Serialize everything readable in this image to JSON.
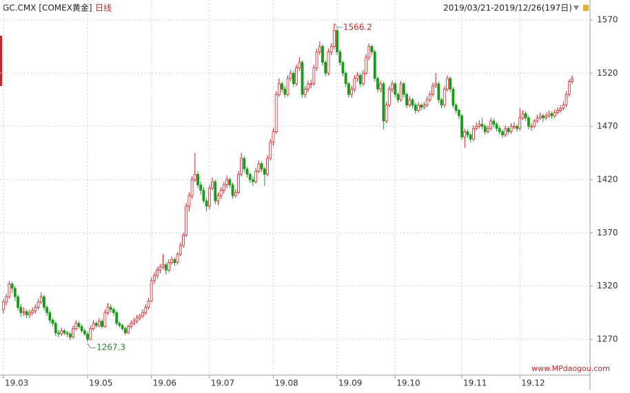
{
  "chart_data": {
    "type": "candlestick",
    "title": "GC.CMX [COMEX黄金]",
    "subtitle": "日线",
    "range_label": "2019/03/21-2019/12/26(197日)",
    "watermark": "www.MPdaogou.com",
    "up_color": "#d42020",
    "down_color": "#1a9a1a",
    "grid": true,
    "ylim": [
      1236.4,
      1588.7
    ],
    "yticks": [
      1270,
      1320,
      1370,
      1420,
      1470,
      1520,
      1570
    ],
    "annotations": [
      {
        "value": 1566.2,
        "color": "#c0282d"
      },
      {
        "value": 1267.3,
        "color": "#2a7d2a"
      }
    ],
    "categories": [
      "19.03",
      null,
      null,
      null,
      null,
      null,
      null,
      null,
      null,
      null,
      null,
      null,
      null,
      null,
      null,
      null,
      null,
      null,
      null,
      null,
      null,
      null,
      null,
      null,
      null,
      null,
      null,
      null,
      null,
      "19.05",
      null,
      null,
      null,
      null,
      null,
      null,
      null,
      null,
      null,
      null,
      null,
      null,
      null,
      null,
      null,
      null,
      null,
      null,
      null,
      null,
      null,
      "19.06",
      null,
      null,
      null,
      null,
      null,
      null,
      null,
      null,
      null,
      null,
      null,
      null,
      null,
      null,
      null,
      null,
      null,
      null,
      null,
      "19.07",
      null,
      null,
      null,
      null,
      null,
      null,
      null,
      null,
      null,
      null,
      null,
      null,
      null,
      null,
      null,
      null,
      null,
      null,
      null,
      null,
      null,
      "19.08",
      null,
      null,
      null,
      null,
      null,
      null,
      null,
      null,
      null,
      null,
      null,
      null,
      null,
      null,
      null,
      null,
      null,
      null,
      null,
      null,
      null,
      "19.09",
      null,
      null,
      null,
      null,
      null,
      null,
      null,
      null,
      null,
      null,
      null,
      null,
      null,
      null,
      null,
      null,
      null,
      null,
      null,
      "19.10",
      null,
      null,
      null,
      null,
      null,
      null,
      null,
      null,
      null,
      null,
      null,
      null,
      null,
      null,
      null,
      null,
      null,
      null,
      null,
      null,
      null,
      null,
      "19.11",
      null,
      null,
      null,
      null,
      null,
      null,
      null,
      null,
      null,
      null,
      null,
      null,
      null,
      null,
      null,
      null,
      null,
      null,
      null,
      "19.12",
      null,
      null,
      null,
      null,
      null,
      null,
      null,
      null,
      null,
      null,
      null,
      null,
      null,
      null,
      null,
      null,
      null,
      null
    ],
    "ohlc": [
      [
        1298,
        1308,
        1294,
        1305
      ],
      [
        1305,
        1313,
        1302,
        1310
      ],
      [
        1310,
        1325,
        1308,
        1322
      ],
      [
        1322,
        1324,
        1314,
        1318
      ],
      [
        1318,
        1320,
        1306,
        1310
      ],
      [
        1310,
        1312,
        1297,
        1300
      ],
      [
        1300,
        1303,
        1291,
        1295
      ],
      [
        1295,
        1300,
        1292,
        1296
      ],
      [
        1296,
        1298,
        1290,
        1293
      ],
      [
        1293,
        1298,
        1290,
        1295
      ],
      [
        1295,
        1300,
        1293,
        1297
      ],
      [
        1297,
        1303,
        1294,
        1300
      ],
      [
        1300,
        1308,
        1298,
        1305
      ],
      [
        1305,
        1314,
        1303,
        1310
      ],
      [
        1310,
        1312,
        1297,
        1300
      ],
      [
        1300,
        1302,
        1292,
        1295
      ],
      [
        1295,
        1297,
        1285,
        1288
      ],
      [
        1288,
        1290,
        1282,
        1285
      ],
      [
        1285,
        1287,
        1273,
        1276
      ],
      [
        1276,
        1279,
        1272,
        1275
      ],
      [
        1275,
        1281,
        1273,
        1278
      ],
      [
        1278,
        1280,
        1274,
        1276
      ],
      [
        1276,
        1278,
        1272,
        1275
      ],
      [
        1275,
        1277,
        1269,
        1272
      ],
      [
        1272,
        1283,
        1271,
        1280
      ],
      [
        1280,
        1288,
        1278,
        1285
      ],
      [
        1285,
        1287,
        1280,
        1282
      ],
      [
        1282,
        1284,
        1276,
        1278
      ],
      [
        1278,
        1280,
        1273,
        1275
      ],
      [
        1275,
        1277,
        1267.3,
        1270
      ],
      [
        1270,
        1283,
        1269,
        1280
      ],
      [
        1280,
        1288,
        1278,
        1285
      ],
      [
        1285,
        1287,
        1281,
        1283
      ],
      [
        1283,
        1290,
        1281,
        1287
      ],
      [
        1287,
        1289,
        1280,
        1282
      ],
      [
        1282,
        1298,
        1281,
        1295
      ],
      [
        1295,
        1304,
        1293,
        1300
      ],
      [
        1300,
        1303,
        1295,
        1298
      ],
      [
        1298,
        1300,
        1292,
        1295
      ],
      [
        1295,
        1297,
        1283,
        1285
      ],
      [
        1285,
        1287,
        1281,
        1283
      ],
      [
        1283,
        1285,
        1278,
        1280
      ],
      [
        1280,
        1282,
        1274,
        1276
      ],
      [
        1276,
        1284,
        1275,
        1282
      ],
      [
        1282,
        1288,
        1280,
        1285
      ],
      [
        1285,
        1290,
        1283,
        1287
      ],
      [
        1287,
        1293,
        1285,
        1290
      ],
      [
        1290,
        1294,
        1288,
        1292
      ],
      [
        1292,
        1298,
        1290,
        1295
      ],
      [
        1295,
        1303,
        1293,
        1300
      ],
      [
        1300,
        1309,
        1298,
        1306
      ],
      [
        1306,
        1328,
        1305,
        1325
      ],
      [
        1325,
        1333,
        1322,
        1330
      ],
      [
        1330,
        1338,
        1327,
        1335
      ],
      [
        1335,
        1341,
        1332,
        1338
      ],
      [
        1338,
        1350,
        1336,
        1340
      ],
      [
        1340,
        1342,
        1331,
        1335
      ],
      [
        1335,
        1345,
        1333,
        1342
      ],
      [
        1342,
        1348,
        1340,
        1345
      ],
      [
        1345,
        1347,
        1339,
        1342
      ],
      [
        1342,
        1352,
        1340,
        1350
      ],
      [
        1350,
        1361,
        1348,
        1358
      ],
      [
        1358,
        1370,
        1356,
        1368
      ],
      [
        1368,
        1398,
        1366,
        1395
      ],
      [
        1395,
        1408,
        1390,
        1405
      ],
      [
        1405,
        1423,
        1402,
        1420
      ],
      [
        1420,
        1445,
        1418,
        1425
      ],
      [
        1425,
        1428,
        1412,
        1415
      ],
      [
        1415,
        1418,
        1406,
        1410
      ],
      [
        1410,
        1413,
        1398,
        1400
      ],
      [
        1400,
        1403,
        1390,
        1395
      ],
      [
        1395,
        1415,
        1392,
        1412
      ],
      [
        1412,
        1422,
        1410,
        1418
      ],
      [
        1418,
        1420,
        1397,
        1400
      ],
      [
        1400,
        1408,
        1396,
        1405
      ],
      [
        1405,
        1413,
        1402,
        1410
      ],
      [
        1410,
        1418,
        1407,
        1415
      ],
      [
        1415,
        1424,
        1412,
        1420
      ],
      [
        1420,
        1422,
        1412,
        1415
      ],
      [
        1415,
        1417,
        1402,
        1405
      ],
      [
        1405,
        1411,
        1403,
        1408
      ],
      [
        1408,
        1428,
        1406,
        1425
      ],
      [
        1425,
        1445,
        1423,
        1440
      ],
      [
        1440,
        1442,
        1427,
        1430
      ],
      [
        1430,
        1432,
        1422,
        1425
      ],
      [
        1425,
        1427,
        1417,
        1420
      ],
      [
        1420,
        1423,
        1414,
        1418
      ],
      [
        1418,
        1431,
        1416,
        1428
      ],
      [
        1428,
        1438,
        1426,
        1435
      ],
      [
        1435,
        1437,
        1427,
        1430
      ],
      [
        1430,
        1432,
        1414,
        1425
      ],
      [
        1425,
        1443,
        1423,
        1440
      ],
      [
        1440,
        1458,
        1438,
        1455
      ],
      [
        1455,
        1468,
        1452,
        1465
      ],
      [
        1465,
        1503,
        1463,
        1500
      ],
      [
        1500,
        1515,
        1498,
        1510
      ],
      [
        1510,
        1512,
        1502,
        1505
      ],
      [
        1505,
        1508,
        1497,
        1500
      ],
      [
        1500,
        1518,
        1498,
        1515
      ],
      [
        1515,
        1523,
        1512,
        1520
      ],
      [
        1520,
        1522,
        1507,
        1510
      ],
      [
        1510,
        1528,
        1508,
        1525
      ],
      [
        1525,
        1535,
        1522,
        1530
      ],
      [
        1530,
        1532,
        1497,
        1500
      ],
      [
        1500,
        1508,
        1497,
        1505
      ],
      [
        1505,
        1513,
        1502,
        1510
      ],
      [
        1510,
        1514,
        1506,
        1510
      ],
      [
        1510,
        1528,
        1508,
        1525
      ],
      [
        1525,
        1543,
        1522,
        1540
      ],
      [
        1540,
        1550,
        1537,
        1545
      ],
      [
        1545,
        1547,
        1527,
        1530
      ],
      [
        1530,
        1532,
        1517,
        1520
      ],
      [
        1520,
        1543,
        1518,
        1540
      ],
      [
        1540,
        1548,
        1537,
        1545
      ],
      [
        1545,
        1566.2,
        1543,
        1560
      ],
      [
        1560,
        1562,
        1537,
        1540
      ],
      [
        1540,
        1542,
        1527,
        1530
      ],
      [
        1530,
        1532,
        1517,
        1520
      ],
      [
        1520,
        1522,
        1507,
        1510
      ],
      [
        1510,
        1512,
        1497,
        1500
      ],
      [
        1500,
        1508,
        1497,
        1505
      ],
      [
        1505,
        1518,
        1502,
        1515
      ],
      [
        1515,
        1521,
        1512,
        1518
      ],
      [
        1518,
        1520,
        1507,
        1510
      ],
      [
        1510,
        1523,
        1508,
        1520
      ],
      [
        1520,
        1538,
        1518,
        1535
      ],
      [
        1535,
        1548,
        1532,
        1545
      ],
      [
        1545,
        1547,
        1537,
        1540
      ],
      [
        1540,
        1542,
        1512,
        1515
      ],
      [
        1515,
        1517,
        1502,
        1505
      ],
      [
        1505,
        1513,
        1502,
        1510
      ],
      [
        1510,
        1512,
        1467,
        1475
      ],
      [
        1475,
        1493,
        1473,
        1490
      ],
      [
        1490,
        1508,
        1488,
        1505
      ],
      [
        1505,
        1513,
        1502,
        1510
      ],
      [
        1510,
        1512,
        1497,
        1500
      ],
      [
        1500,
        1502,
        1492,
        1495
      ],
      [
        1495,
        1513,
        1493,
        1510
      ],
      [
        1510,
        1512,
        1497,
        1500
      ],
      [
        1500,
        1502,
        1487,
        1490
      ],
      [
        1490,
        1498,
        1488,
        1495
      ],
      [
        1495,
        1497,
        1487,
        1490
      ],
      [
        1490,
        1492,
        1482,
        1485
      ],
      [
        1485,
        1493,
        1483,
        1490
      ],
      [
        1490,
        1492,
        1485,
        1488
      ],
      [
        1488,
        1493,
        1486,
        1490
      ],
      [
        1490,
        1498,
        1488,
        1495
      ],
      [
        1495,
        1503,
        1493,
        1500
      ],
      [
        1500,
        1511,
        1498,
        1508
      ],
      [
        1508,
        1520,
        1506,
        1510
      ],
      [
        1510,
        1512,
        1492,
        1495
      ],
      [
        1495,
        1497,
        1487,
        1490
      ],
      [
        1490,
        1508,
        1488,
        1505
      ],
      [
        1505,
        1518,
        1503,
        1515
      ],
      [
        1515,
        1517,
        1502,
        1505
      ],
      [
        1505,
        1507,
        1487,
        1490
      ],
      [
        1490,
        1492,
        1482,
        1485
      ],
      [
        1485,
        1487,
        1477,
        1480
      ],
      [
        1480,
        1482,
        1457,
        1460
      ],
      [
        1460,
        1468,
        1450,
        1465
      ],
      [
        1465,
        1467,
        1459,
        1462
      ],
      [
        1462,
        1464,
        1455,
        1458
      ],
      [
        1458,
        1471,
        1456,
        1468
      ],
      [
        1468,
        1474,
        1466,
        1470
      ],
      [
        1470,
        1476,
        1468,
        1472
      ],
      [
        1472,
        1478,
        1467,
        1470
      ],
      [
        1470,
        1472,
        1462,
        1465
      ],
      [
        1465,
        1471,
        1463,
        1468
      ],
      [
        1468,
        1478,
        1466,
        1475
      ],
      [
        1475,
        1477,
        1469,
        1472
      ],
      [
        1472,
        1474,
        1465,
        1468
      ],
      [
        1468,
        1470,
        1462,
        1465
      ],
      [
        1465,
        1467,
        1459,
        1462
      ],
      [
        1462,
        1471,
        1460,
        1468
      ],
      [
        1468,
        1470,
        1462,
        1465
      ],
      [
        1465,
        1473,
        1463,
        1470
      ],
      [
        1470,
        1474,
        1467,
        1470
      ],
      [
        1470,
        1472,
        1465,
        1468
      ],
      [
        1468,
        1487,
        1466,
        1478
      ],
      [
        1478,
        1485,
        1476,
        1482
      ],
      [
        1482,
        1484,
        1475,
        1478
      ],
      [
        1478,
        1480,
        1467,
        1470
      ],
      [
        1470,
        1473,
        1466,
        1470
      ],
      [
        1470,
        1477,
        1468,
        1475
      ],
      [
        1475,
        1481,
        1473,
        1478
      ],
      [
        1478,
        1483,
        1476,
        1480
      ],
      [
        1480,
        1482,
        1474,
        1478
      ],
      [
        1478,
        1483,
        1476,
        1480
      ],
      [
        1480,
        1485,
        1478,
        1482
      ],
      [
        1482,
        1484,
        1477,
        1480
      ],
      [
        1480,
        1486,
        1478,
        1483
      ],
      [
        1483,
        1488,
        1481,
        1485
      ],
      [
        1485,
        1490,
        1483,
        1487
      ],
      [
        1487,
        1493,
        1485,
        1490
      ],
      [
        1490,
        1503,
        1488,
        1500
      ],
      [
        1500,
        1514,
        1498,
        1512
      ],
      [
        1512,
        1518,
        1510,
        1515
      ]
    ]
  }
}
